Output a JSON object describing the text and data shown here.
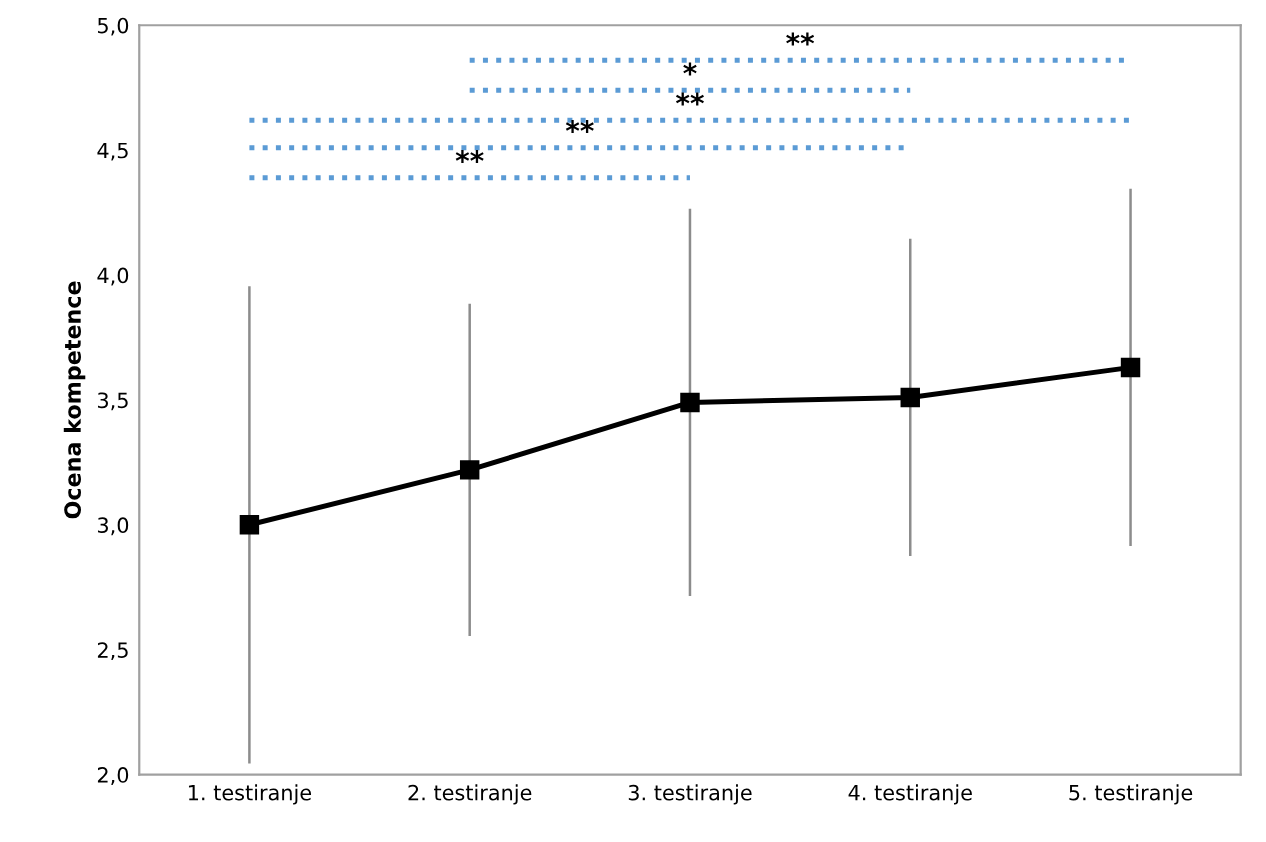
{
  "chart_data": {
    "type": "line",
    "ylabel": "Ocena kompetence",
    "categories": [
      "1. testiranje",
      "2. testiranje",
      "3. testiranje",
      "4. testiranje",
      "5. testiranje"
    ],
    "series": [
      {
        "color": "#000000",
        "values": [
          3.0,
          3.22,
          3.49,
          3.51,
          3.63
        ],
        "errors": [
          0.95,
          0.66,
          0.77,
          0.63,
          0.71
        ],
        "marker": "square",
        "line_style": "solid"
      },
      {
        "color": "#5b9bd5",
        "values": [
          null,
          4.86,
          4.86,
          4.86,
          4.86
        ],
        "marker": "none",
        "line_style": "dotted"
      },
      {
        "color": "#5b9bd5",
        "values": [
          null,
          4.74,
          4.74,
          4.74,
          null
        ],
        "marker": "none",
        "line_style": "dotted"
      },
      {
        "color": "#5b9bd5",
        "values": [
          4.62,
          4.62,
          4.62,
          4.62,
          4.62
        ],
        "marker": "none",
        "line_style": "dotted"
      },
      {
        "color": "#5b9bd5",
        "values": [
          4.51,
          4.51,
          4.51,
          4.51,
          null
        ],
        "marker": "none",
        "line_style": "dotted"
      },
      {
        "color": "#5b9bd5",
        "values": [
          4.39,
          4.39,
          4.39,
          null,
          null
        ],
        "marker": "none",
        "line_style": "dotted"
      }
    ],
    "annotations": [
      "**",
      "*",
      "**",
      "**",
      "**"
    ],
    "ylim": [
      2.0,
      5.0
    ],
    "yticks": [
      {
        "value": 2.0,
        "label": "2,0"
      },
      {
        "value": 2.5,
        "label": "2,5"
      },
      {
        "value": 3.0,
        "label": "3,0"
      },
      {
        "value": 3.5,
        "label": "3,5"
      },
      {
        "value": 4.0,
        "label": "4,0"
      },
      {
        "value": 4.5,
        "label": "4,5"
      },
      {
        "value": 5.0,
        "label": "5,0"
      }
    ],
    "grid": false,
    "legend": false
  }
}
